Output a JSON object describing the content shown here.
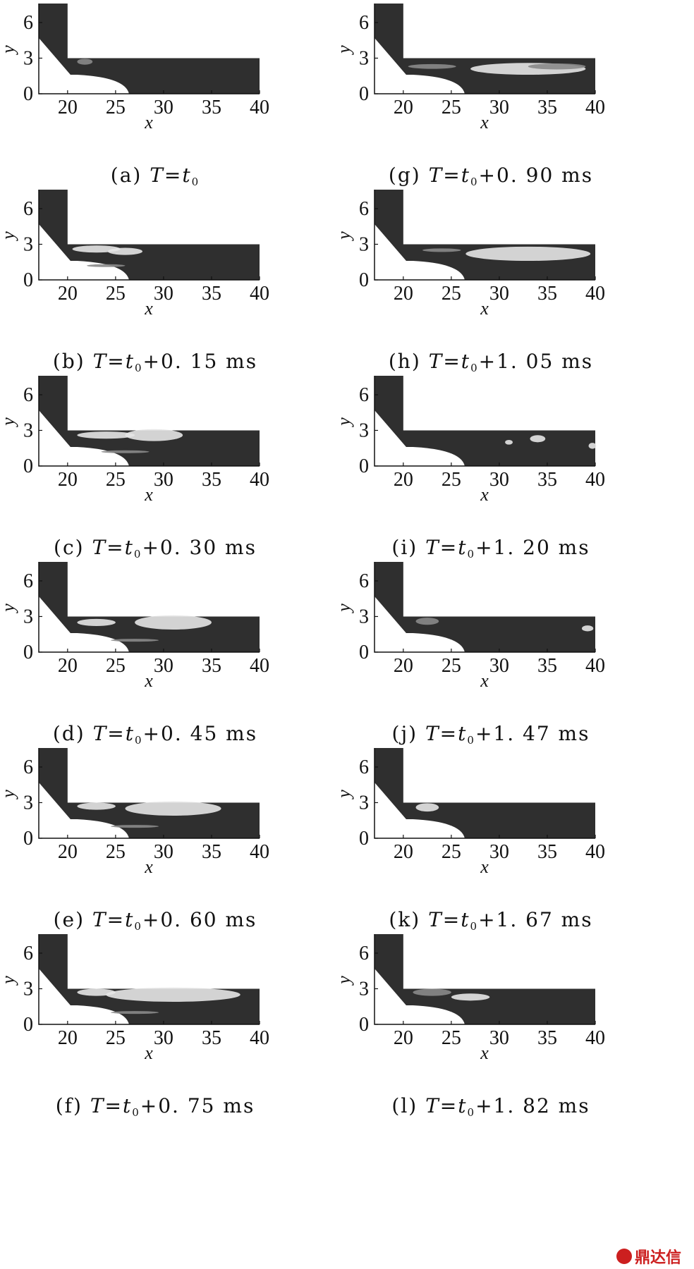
{
  "figure": {
    "axis_x_label": "x",
    "axis_y_label": "y",
    "x_ticks": [
      "20",
      "25",
      "30",
      "35",
      "40"
    ],
    "y_ticks": [
      "0",
      "3",
      "6"
    ],
    "colors": {
      "background_fluid": "#2f2f2f",
      "wall": "#ffffff",
      "plume_mid": "#8a8a8a",
      "plume_light": "#e6e6e6"
    },
    "watermark": "鼎达信"
  },
  "panels": [
    {
      "id": "a",
      "label": "(a)",
      "t_symbol": "T",
      "eq": "=",
      "t0": "t",
      "t0_sub": "0",
      "offset": "",
      "unit": ""
    },
    {
      "id": "g",
      "label": "(g)",
      "t_symbol": "T",
      "eq": "=",
      "t0": "t",
      "t0_sub": "0",
      "offset": "+0. 90",
      "unit": "ms"
    },
    {
      "id": "b",
      "label": "(b)",
      "t_symbol": "T",
      "eq": "=",
      "t0": "t",
      "t0_sub": "0",
      "offset": "+0. 15",
      "unit": "ms"
    },
    {
      "id": "h",
      "label": "(h)",
      "t_symbol": "T",
      "eq": "=",
      "t0": "t",
      "t0_sub": "0",
      "offset": "+1. 05",
      "unit": "ms"
    },
    {
      "id": "c",
      "label": "(c)",
      "t_symbol": "T",
      "eq": "=",
      "t0": "t",
      "t0_sub": "0",
      "offset": "+0. 30",
      "unit": "ms"
    },
    {
      "id": "i",
      "label": "(i)",
      "t_symbol": "T",
      "eq": "=",
      "t0": "t",
      "t0_sub": "0",
      "offset": "+1. 20",
      "unit": "ms"
    },
    {
      "id": "d",
      "label": "(d)",
      "t_symbol": "T",
      "eq": "=",
      "t0": "t",
      "t0_sub": "0",
      "offset": "+0. 45",
      "unit": "ms"
    },
    {
      "id": "j",
      "label": "(j)",
      "t_symbol": "T",
      "eq": "=",
      "t0": "t",
      "t0_sub": "0",
      "offset": "+1. 47",
      "unit": "ms"
    },
    {
      "id": "e",
      "label": "(e)",
      "t_symbol": "T",
      "eq": "=",
      "t0": "t",
      "t0_sub": "0",
      "offset": "+0. 60",
      "unit": "ms"
    },
    {
      "id": "k",
      "label": "(k)",
      "t_symbol": "T",
      "eq": "=",
      "t0": "t",
      "t0_sub": "0",
      "offset": "+1. 67",
      "unit": "ms"
    },
    {
      "id": "f",
      "label": "(f)",
      "t_symbol": "T",
      "eq": "=",
      "t0": "t",
      "t0_sub": "0",
      "offset": "+0. 75",
      "unit": "ms"
    },
    {
      "id": "l",
      "label": "(l)",
      "t_symbol": "T",
      "eq": "=",
      "t0": "t",
      "t0_sub": "0",
      "offset": "+1. 82",
      "unit": "ms"
    }
  ]
}
